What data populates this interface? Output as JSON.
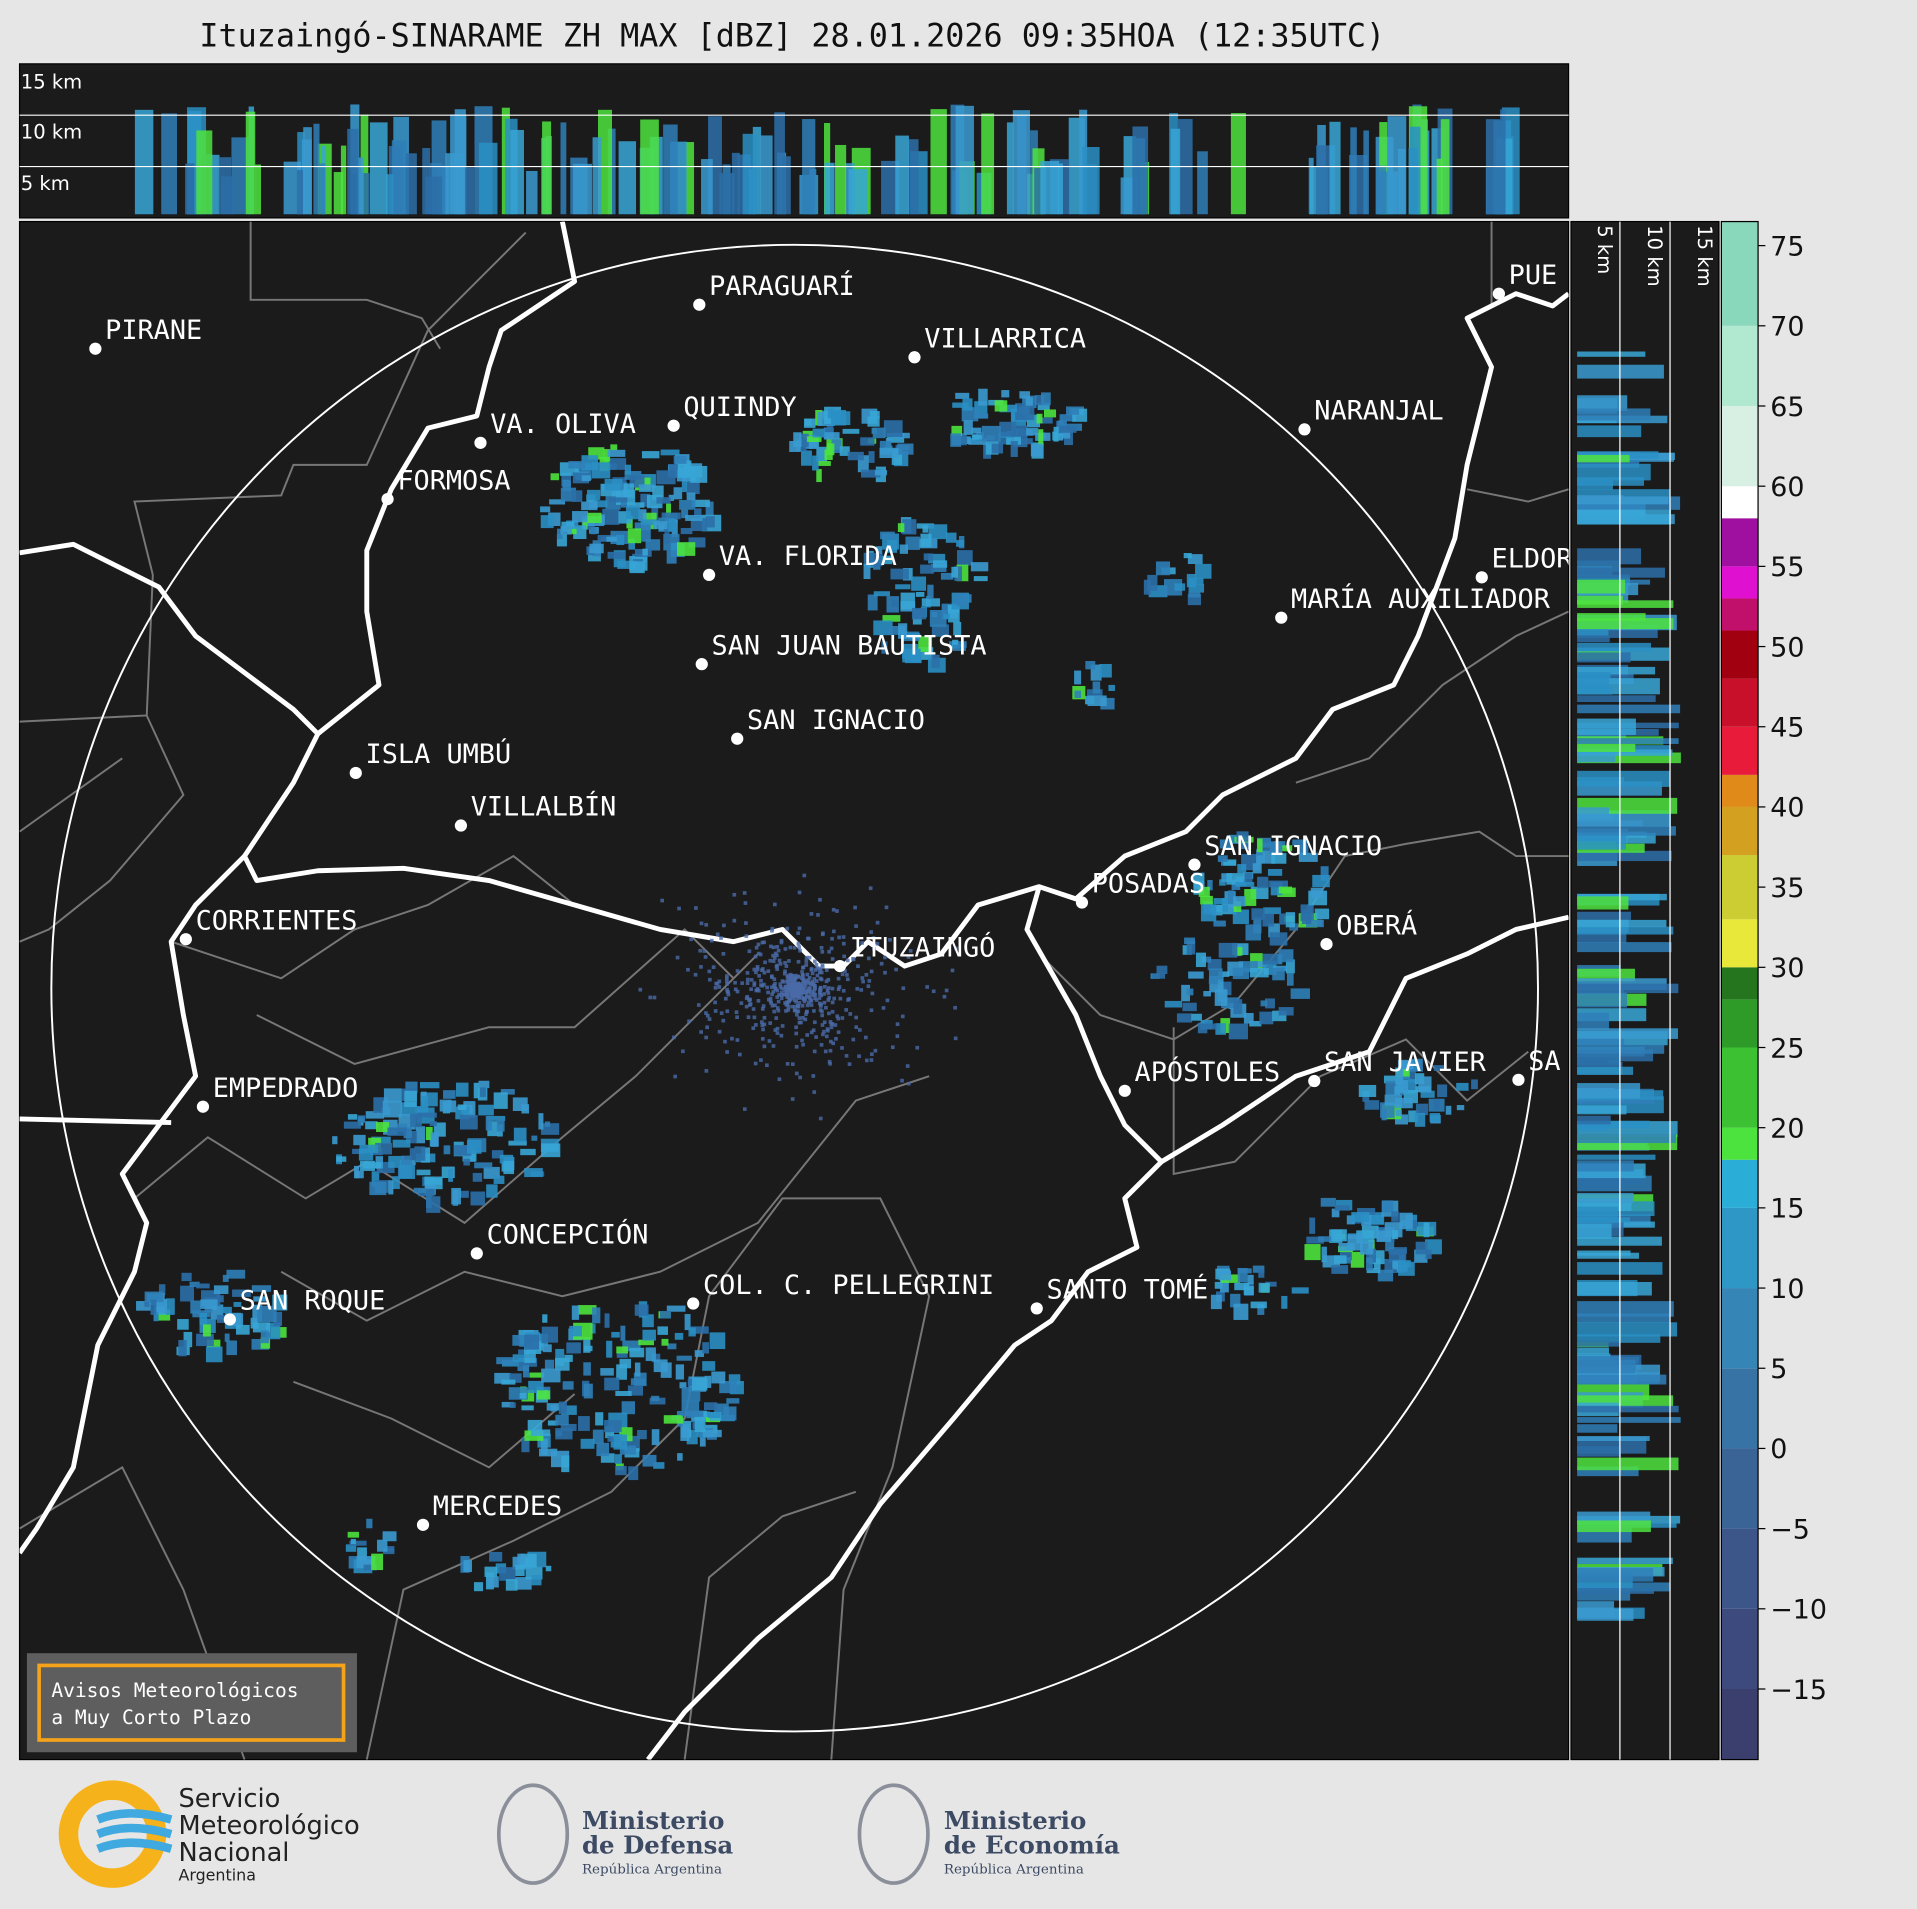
{
  "title": "Ituzaingó-SINARAME ZH MAX [dBZ] 28.01.2026 09:35HOA (12:35UTC)",
  "profile_top": {
    "labels": [
      "15 km",
      "10 km",
      "5 km"
    ]
  },
  "profile_side": {
    "labels": [
      "5 km",
      "10 km",
      "15 km"
    ]
  },
  "colorbar": {
    "lim": [
      -19.4,
      76.5
    ],
    "ticks": [
      {
        "value": -15,
        "label": "−15"
      },
      {
        "value": -10,
        "label": "−10"
      },
      {
        "value": -5,
        "label": "−5"
      },
      0,
      5,
      10,
      15,
      20,
      25,
      30,
      35,
      40,
      45,
      50,
      55,
      60,
      65,
      70,
      75
    ],
    "bands": [
      {
        "from": -19.4,
        "to": -15,
        "color": "#3a3f6e"
      },
      {
        "from": -15,
        "to": -10,
        "color": "#3d4a7e"
      },
      {
        "from": -10,
        "to": -5,
        "color": "#3d5689"
      },
      {
        "from": -5,
        "to": 0,
        "color": "#3b6496"
      },
      {
        "from": 0,
        "to": 5,
        "color": "#3873a5"
      },
      {
        "from": 5,
        "to": 10,
        "color": "#3585b6"
      },
      {
        "from": 10,
        "to": 15,
        "color": "#2f97c6"
      },
      {
        "from": 15,
        "to": 18,
        "color": "#2aaed8"
      },
      {
        "from": 18,
        "to": 20,
        "color": "#4de33e"
      },
      {
        "from": 20,
        "to": 25,
        "color": "#3cc133"
      },
      {
        "from": 25,
        "to": 28,
        "color": "#2e9a27"
      },
      {
        "from": 28,
        "to": 30,
        "color": "#25741e"
      },
      {
        "from": 30,
        "to": 33,
        "color": "#e8e83a"
      },
      {
        "from": 33,
        "to": 37,
        "color": "#cccc33"
      },
      {
        "from": 37,
        "to": 40,
        "color": "#d4a020"
      },
      {
        "from": 40,
        "to": 42,
        "color": "#e08a1a"
      },
      {
        "from": 42,
        "to": 45,
        "color": "#e81b3a"
      },
      {
        "from": 45,
        "to": 48,
        "color": "#c8102a"
      },
      {
        "from": 48,
        "to": 51,
        "color": "#a00010"
      },
      {
        "from": 51,
        "to": 53,
        "color": "#c0106c"
      },
      {
        "from": 53,
        "to": 55,
        "color": "#e010d0"
      },
      {
        "from": 55,
        "to": 58,
        "color": "#a010a0"
      },
      {
        "from": 58,
        "to": 60,
        "color": "#ffffff"
      },
      {
        "from": 60,
        "to": 65,
        "color": "#d8f0e4"
      },
      {
        "from": 65,
        "to": 70,
        "color": "#b0e8d0"
      },
      {
        "from": 70,
        "to": 76.5,
        "color": "#8ad8bc"
      }
    ]
  },
  "cities": [
    "PIRANE",
    "PARAGUARÍ",
    "VILLARRICA",
    "VA. OLIVA",
    "QUIINDY",
    "NARANJAL",
    "FORMOSA",
    "VA. FLORIDA",
    "ELDOR",
    "MARÍA AUXILIADOR",
    "SAN JUAN BAUTISTA",
    "SAN IGNACIO",
    "ISLA UMBÚ",
    "VILLALBÍN",
    "SAN IGNACIO",
    "POSADAS",
    "CORRIENTES",
    "OBERÁ",
    "ITUZAINGÓ",
    "APÓSTOLES",
    "SAN JAVIER",
    "SA",
    "EMPEDRADO",
    "CONCEPCIÓN",
    "COL. C. PELLEGRINI",
    "SANTO TOMÉ",
    "SAN ROQUE",
    "MERCEDES",
    "PUE"
  ],
  "warning": {
    "line1": "Avisos Meteorológicos",
    "line2": "a Muy Corto Plazo"
  },
  "footer": {
    "smn": [
      "Servicio",
      "Meteorológico",
      "Nacional",
      "Argentina"
    ],
    "defensa": [
      "Ministerio",
      "de Defensa",
      "República Argentina"
    ],
    "economia": [
      "Ministerio",
      "de Economía",
      "República Argentina"
    ]
  }
}
